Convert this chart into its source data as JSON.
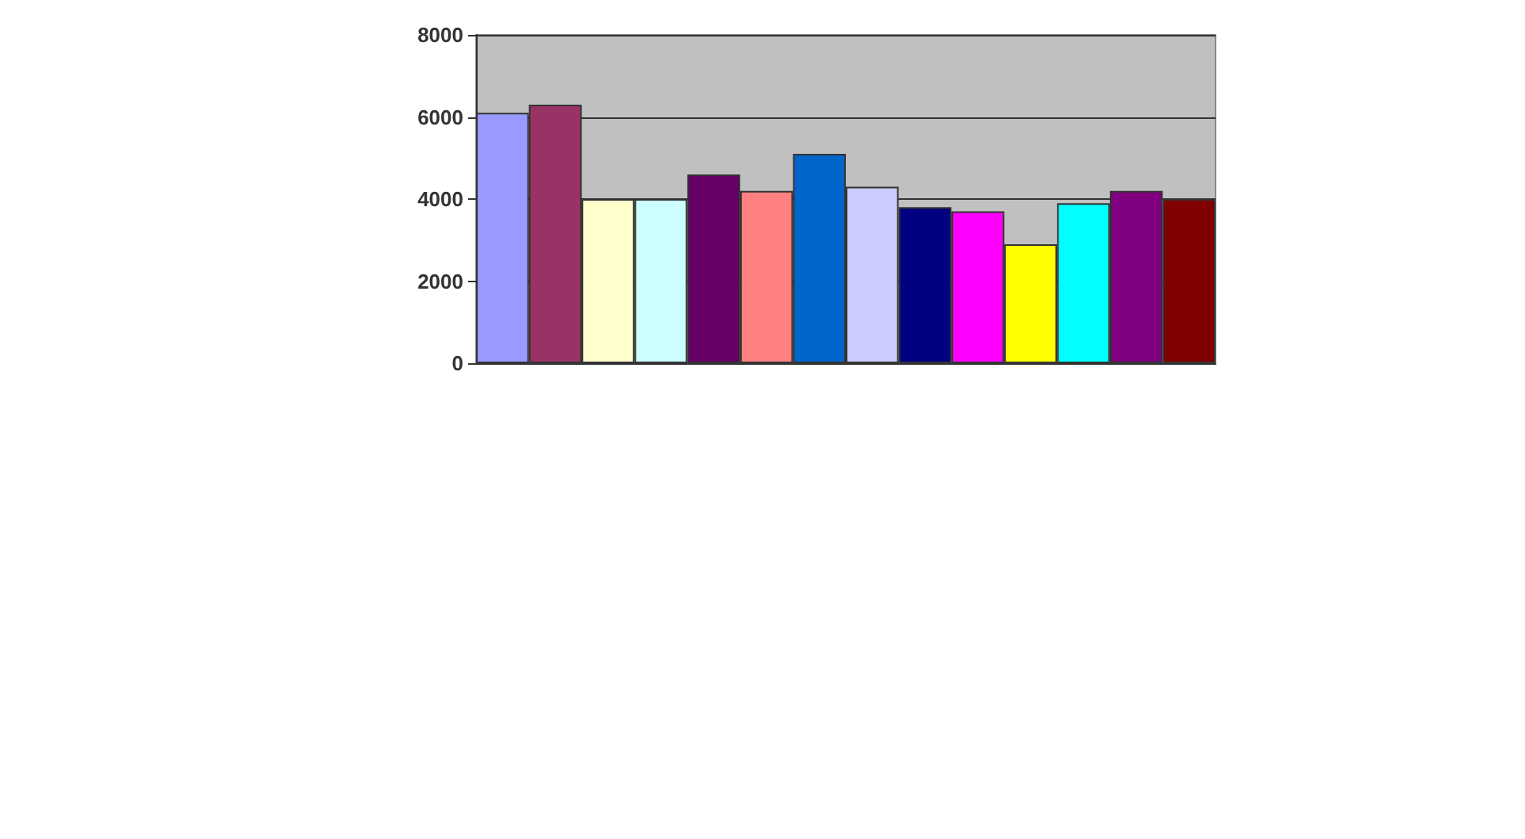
{
  "chart_data": {
    "type": "bar",
    "categories": [
      null,
      null,
      null,
      null,
      null,
      null,
      null,
      null,
      null,
      null,
      null,
      null,
      null,
      null
    ],
    "values": [
      6100,
      6300,
      4000,
      4000,
      4600,
      4200,
      5100,
      4300,
      3800,
      3700,
      2900,
      3900,
      4200,
      4000
    ],
    "colors": [
      "#9999ff",
      "#993366",
      "#ffffcc",
      "#ccffff",
      "#660066",
      "#ff8080",
      "#0066cc",
      "#ccccff",
      "#000080",
      "#ff00ff",
      "#ffff00",
      "#00ffff",
      "#800080",
      "#800000"
    ],
    "ylim": [
      0,
      8000
    ],
    "yticks": [
      0,
      2000,
      4000,
      6000,
      8000
    ],
    "grid": "y"
  }
}
